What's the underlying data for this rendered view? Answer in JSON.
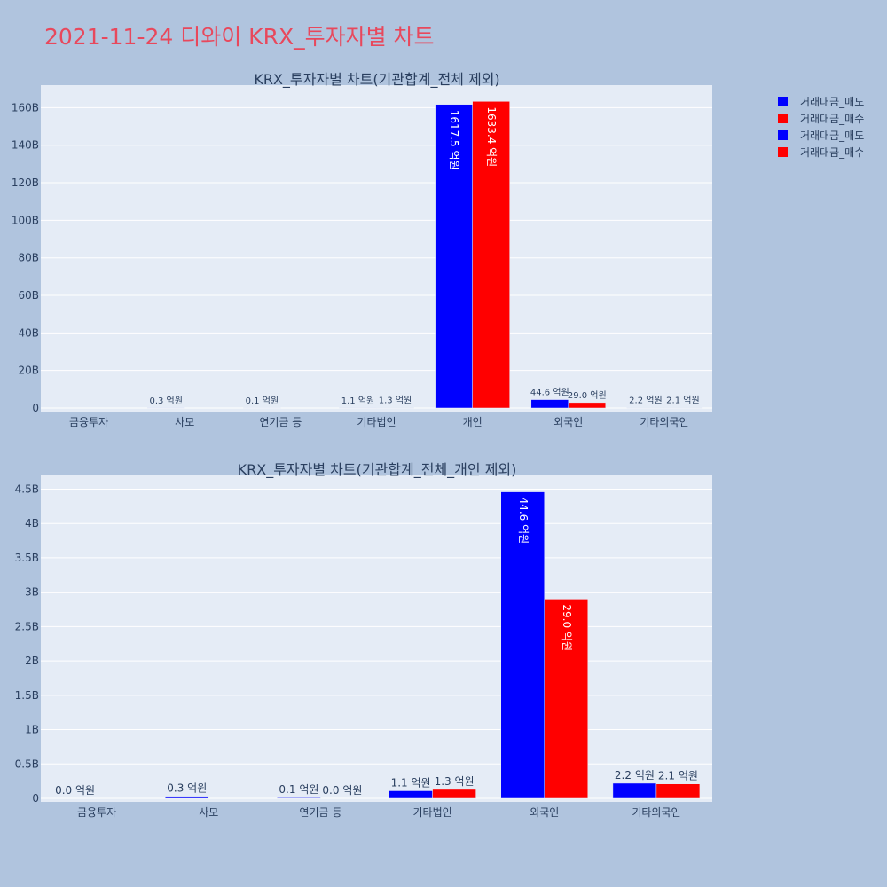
{
  "title": "2021-11-24 디와이 KRX_투자자별 차트",
  "legend": [
    {
      "label": "거래대금_매도",
      "color": "#0000ff"
    },
    {
      "label": "거래대금_매수",
      "color": "#ff0000"
    },
    {
      "label": "거래대금_매도",
      "color": "#0000ff"
    },
    {
      "label": "거래대금_매수",
      "color": "#ff0000"
    }
  ],
  "chart_data": [
    {
      "type": "bar",
      "title": "KRX_투자자별 차트(기관합계_전체 제외)",
      "categories": [
        "금융투자",
        "사모",
        "연기금 등",
        "기타법인",
        "개인",
        "외국인",
        "기타외국인"
      ],
      "series": [
        {
          "name": "거래대금_매도",
          "color": "#0000ff",
          "values": [
            0,
            30000000,
            10000000,
            110000000,
            161750000000,
            4460000000,
            220000000
          ],
          "labels": [
            "",
            "0.3 억원",
            "0.1 억원",
            "1.1 억원",
            "1617.5 억원",
            "44.6 억원",
            "2.2 억원"
          ]
        },
        {
          "name": "거래대금_매수",
          "color": "#ff0000",
          "values": [
            0,
            0,
            0,
            130000000,
            163340000000,
            2900000000,
            210000000
          ],
          "labels": [
            "",
            "",
            "",
            "1.3 억원",
            "1633.4 억원",
            "29.0 억원",
            "2.1 억원"
          ]
        }
      ],
      "ylim": [
        0,
        172000000000
      ],
      "yticks": [
        0,
        20000000000,
        40000000000,
        60000000000,
        80000000000,
        100000000000,
        120000000000,
        140000000000,
        160000000000
      ],
      "yticklabels": [
        "0",
        "20B",
        "40B",
        "60B",
        "80B",
        "100B",
        "120B",
        "140B",
        "160B"
      ],
      "grid": true
    },
    {
      "type": "bar",
      "title": "KRX_투자자별 차트(기관합계_전체_개인 제외)",
      "categories": [
        "금융투자",
        "사모",
        "연기금 등",
        "기타법인",
        "외국인",
        "기타외국인"
      ],
      "series": [
        {
          "name": "거래대금_매도",
          "color": "#0000ff",
          "values": [
            0,
            30000000,
            10000000,
            110000000,
            4460000000,
            220000000
          ],
          "labels": [
            "0.0 억원",
            "0.3 억원",
            "0.1 억원",
            "1.1 억원",
            "44.6 억원",
            "2.2 억원"
          ]
        },
        {
          "name": "거래대금_매수",
          "color": "#ff0000",
          "values": [
            0,
            0,
            0,
            130000000,
            2900000000,
            210000000
          ],
          "labels": [
            "",
            "",
            "0.0 억원",
            "1.3 억원",
            "29.0 억원",
            "2.1 억원"
          ]
        }
      ],
      "ylim": [
        0,
        4700000000
      ],
      "yticks": [
        0,
        500000000,
        1000000000,
        1500000000,
        2000000000,
        2500000000,
        3000000000,
        3500000000,
        4000000000,
        4500000000
      ],
      "yticklabels": [
        "0",
        "0.5B",
        "1B",
        "1.5B",
        "2B",
        "2.5B",
        "3B",
        "3.5B",
        "4B",
        "4.5B"
      ],
      "grid": true
    }
  ]
}
